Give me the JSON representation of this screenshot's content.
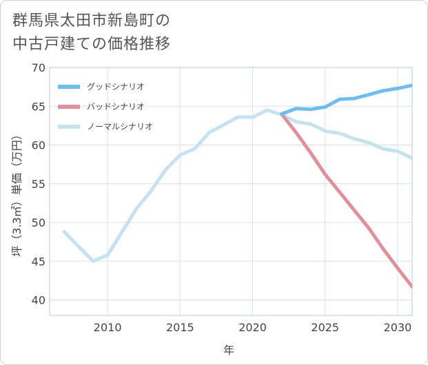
{
  "title": {
    "line1": "群馬県太田市新島町の",
    "line2": "中古戸建ての価格推移"
  },
  "chart_data": {
    "type": "line",
    "title": "群馬県太田市新島町の中古戸建ての価格推移",
    "xlabel": "年",
    "ylabel": "坪（3.3㎡）単価（万円）",
    "xlim": [
      2006,
      2031
    ],
    "ylim": [
      38,
      70
    ],
    "x_ticks": [
      2010,
      2015,
      2020,
      2025,
      2030
    ],
    "y_ticks": [
      40,
      45,
      50,
      55,
      60,
      65,
      70
    ],
    "grid": true,
    "legend_position": "top-left",
    "series": [
      {
        "name": "グッドシナリオ",
        "color": "#6dbdf2",
        "x": [
          2022,
          2023,
          2024,
          2025,
          2026,
          2027,
          2028,
          2029,
          2030,
          2031
        ],
        "y": [
          64.0,
          64.7,
          64.6,
          64.9,
          65.9,
          66.0,
          66.5,
          67.0,
          67.3,
          67.7
        ]
      },
      {
        "name": "バッドシナリオ",
        "color": "#e0909a",
        "x": [
          2022,
          2023,
          2024,
          2025,
          2026,
          2027,
          2028,
          2029,
          2030,
          2031
        ],
        "y": [
          64.0,
          61.6,
          59.0,
          56.2,
          53.9,
          51.6,
          49.3,
          46.6,
          44.1,
          41.7
        ]
      },
      {
        "name": "ノーマルシナリオ",
        "color": "#c5e2f0",
        "x": [
          2007,
          2009,
          2010,
          2011,
          2012,
          2013,
          2014,
          2015,
          2016,
          2017,
          2018,
          2019,
          2020,
          2021,
          2022,
          2023,
          2024,
          2025,
          2026,
          2027,
          2028,
          2029,
          2030,
          2031
        ],
        "y": [
          48.8,
          45.0,
          45.8,
          48.8,
          51.8,
          54.1,
          56.8,
          58.7,
          59.5,
          61.6,
          62.6,
          63.6,
          63.6,
          64.5,
          63.9,
          63.0,
          62.7,
          61.8,
          61.5,
          60.8,
          60.3,
          59.5,
          59.2,
          58.3
        ]
      }
    ]
  }
}
